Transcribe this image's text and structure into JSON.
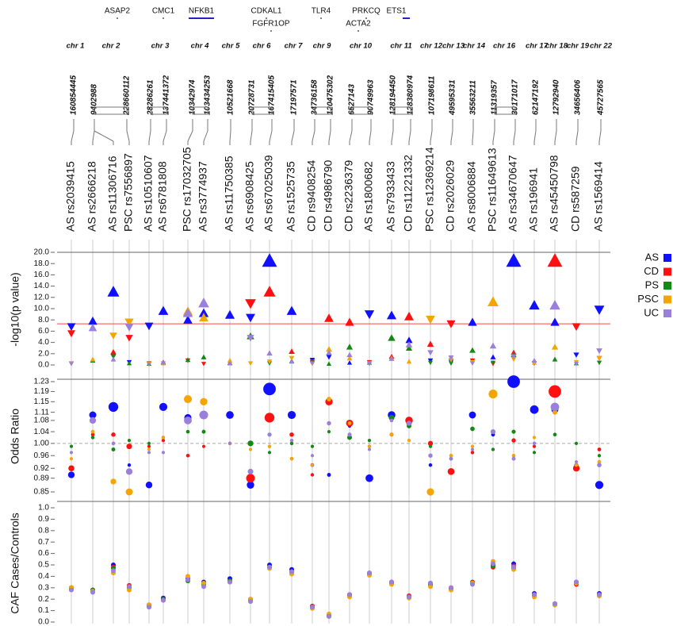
{
  "genes": [
    "ASAP2",
    "CMC1",
    "NFKB1",
    "CDKAL1",
    "FGFR1OP",
    "TLR4",
    "PRKCQ",
    "ACTA2",
    "ETS1"
  ],
  "chromosomes": [
    {
      "name": "chr 1",
      "positions": [
        "160854445"
      ]
    },
    {
      "name": "chr 2",
      "positions": [
        "9402988",
        "228660112"
      ]
    },
    {
      "name": "chr 3",
      "positions": [
        "28286261",
        "137441372"
      ]
    },
    {
      "name": "chr 4",
      "positions": [
        "10342974",
        "103434253"
      ]
    },
    {
      "name": "chr 5",
      "positions": [
        "10521668"
      ]
    },
    {
      "name": "chr 6",
      "positions": [
        "20728731",
        "167415405"
      ]
    },
    {
      "name": "chr 7",
      "positions": [
        "17197571"
      ]
    },
    {
      "name": "chr 9",
      "positions": [
        "34736158",
        "120475302"
      ]
    },
    {
      "name": "chr 10",
      "positions": [
        "6527143",
        "90749963"
      ]
    },
    {
      "name": "chr 11",
      "positions": [
        "128194450",
        "128380974"
      ]
    },
    {
      "name": "chr 12",
      "positions": [
        "107198611"
      ]
    },
    {
      "name": "chr 13",
      "positions": [
        "49595331"
      ]
    },
    {
      "name": "chr 14",
      "positions": [
        "35563211"
      ]
    },
    {
      "name": "chr 16",
      "positions": [
        "11319357",
        "30171017"
      ]
    },
    {
      "name": "chr 17",
      "positions": [
        "62147192"
      ]
    },
    {
      "name": "chr 18",
      "positions": [
        "12792940"
      ]
    },
    {
      "name": "chr 19",
      "positions": [
        "34656406"
      ]
    },
    {
      "name": "chr 22",
      "positions": [
        "45727565"
      ]
    }
  ],
  "chart_data": [
    {
      "type": "scatter",
      "marker": "triangle",
      "ylabel": "-log10(p value)",
      "categories": [
        "AS rs2039415",
        "AS rs2666218",
        "AS rs11306716",
        "PSC rs7556897",
        "AS rs10510607",
        "AS rs6781808",
        "PSC rs17032705",
        "AS rs3774937",
        "AS rs11750385",
        "AS rs6908425",
        "AS rs67025039",
        "AS rs1525735",
        "CD rs9408254",
        "CD rs4986790",
        "CD rs2236379",
        "AS rs1800682",
        "AS rs7933433",
        "CD rs11221332",
        "PSC rs12369214",
        "CD rs2026029",
        "AS rs8006884",
        "PSC rs11649613",
        "AS rs34670647",
        "AS rs196941",
        "AS rs45450798",
        "CD rs587259",
        "AS rs1569414"
      ],
      "ylim": [
        0,
        20
      ],
      "yticks": [
        {
          "value": 0,
          "label": "0.0"
        },
        {
          "value": 2,
          "label": "2.0"
        },
        {
          "value": 4,
          "label": "4.0"
        },
        {
          "value": 6,
          "label": "6.0"
        },
        {
          "value": 8,
          "label": "8.0"
        },
        {
          "value": 10,
          "label": "10.0"
        },
        {
          "value": 12,
          "label": "12.0"
        },
        {
          "value": 14,
          "label": "14.0"
        },
        {
          "value": 16,
          "label": "16.0"
        },
        {
          "value": 18,
          "label": "18.0"
        },
        {
          "value": 20,
          "label": "20.0"
        }
      ],
      "significance_line": 7.3,
      "significance_color": "#ff4444",
      "series": [
        {
          "name": "AS",
          "color": "#1010ff",
          "values": [
            6.8,
            7.8,
            13.0,
            0.5,
            6.9,
            9.6,
            8.0,
            9.2,
            8.9,
            8.4,
            18.5,
            9.6,
            0.9,
            1.4,
            0.4,
            9.0,
            8.8,
            4.4,
            0.8,
            0.6,
            7.6,
            1.4,
            18.5,
            10.6,
            7.6,
            1.8,
            9.8
          ]
        },
        {
          "name": "CD",
          "color": "#ff1010",
          "values": [
            5.6,
            0.8,
            2.3,
            4.8,
            0.3,
            0.5,
            0.8,
            0.2,
            0.4,
            10.9,
            13.0,
            2.4,
            0.6,
            8.3,
            7.6,
            0.5,
            1.5,
            8.6,
            3.7,
            7.3,
            0.8,
            0.2,
            2.2,
            0.3,
            18.5,
            6.8,
            1.2
          ]
        },
        {
          "name": "PS",
          "color": "#108a10",
          "values": [
            0.3,
            0.8,
            1.5,
            0.3,
            0.2,
            0.4,
            0.9,
            1.4,
            0.3,
            5.1,
            0.3,
            0.7,
            0.4,
            0.2,
            3.2,
            0.4,
            4.8,
            3.0,
            0.4,
            0.3,
            2.6,
            0.4,
            1.8,
            0.3,
            1.0,
            0.3,
            0.4
          ]
        },
        {
          "name": "PSC",
          "color": "#f5a500",
          "values": [
            0.3,
            1.0,
            5.2,
            7.6,
            0.2,
            0.3,
            9.5,
            8.4,
            0.8,
            0.3,
            0.6,
            1.2,
            0.2,
            2.8,
            1.2,
            0.3,
            1.2,
            0.6,
            8.1,
            0.9,
            0.5,
            11.2,
            1.0,
            0.4,
            3.2,
            0.5,
            1.2
          ]
        },
        {
          "name": "UC",
          "color": "#9a7fdc",
          "values": [
            0.2,
            6.6,
            1.0,
            6.7,
            0.1,
            0.3,
            9.2,
            11.0,
            0.3,
            4.8,
            2.1,
            0.6,
            0.3,
            2.2,
            1.8,
            0.2,
            1.1,
            3.6,
            2.2,
            1.3,
            0.3,
            3.4,
            1.5,
            0.8,
            10.6,
            0.2,
            2.5
          ]
        }
      ]
    },
    {
      "type": "scatter",
      "marker": "circle",
      "ylabel": "Odds Ratio",
      "log_scale": true,
      "reference_line": 1,
      "ylim": [
        0.85,
        1.23
      ],
      "yticks": [
        0.85,
        0.89,
        0.92,
        0.96,
        {
          "value": 1,
          "label": "1.00"
        },
        1.04,
        1.08,
        1.11,
        1.15,
        1.19,
        1.23
      ],
      "series": [
        {
          "values": [
            0.9,
            1.1,
            1.13,
            0.93,
            0.87,
            1.13,
            1.09,
            1.1,
            1.1,
            0.87,
            1.2,
            1.1,
            0.93,
            0.9,
            1.06,
            0.89,
            1.1,
            1.07,
            0.93,
            0.95,
            1.1,
            1.03,
            1.23,
            1.12,
            1.12,
            0.93,
            0.87
          ]
        },
        {
          "values": [
            0.92,
            1.03,
            1.03,
            0.99,
            0.99,
            1.01,
            0.96,
            0.99,
            1.0,
            0.89,
            1.09,
            1.03,
            0.9,
            1.15,
            1.07,
            0.99,
            1.03,
            1.08,
            1.0,
            0.91,
            0.97,
            0.98,
            1.01,
            0.99,
            1.19,
            0.92,
            0.98
          ]
        },
        {
          "values": [
            0.99,
            1.02,
            0.98,
            1.01,
            1.0,
            1.02,
            1.04,
            1.04,
            1.0,
            1.0,
            0.97,
            1.0,
            0.99,
            1.04,
            1.02,
            1.01,
            1.09,
            1.06,
            0.99,
            0.95,
            1.05,
            0.98,
            1.04,
            0.97,
            1.03,
            1.0,
            0.96
          ]
        },
        {
          "values": [
            0.95,
            1.04,
            0.88,
            0.85,
            0.98,
            1.02,
            1.16,
            1.15,
            1.0,
            0.98,
            0.99,
            0.95,
            0.93,
            1.16,
            1.07,
            0.99,
            1.03,
            1.01,
            0.85,
            0.96,
            0.99,
            1.18,
            0.96,
            1.02,
            1.11,
            0.93,
            0.94
          ]
        },
        {
          "values": [
            0.97,
            1.08,
            1.0,
            0.91,
            0.97,
            0.97,
            1.08,
            1.1,
            1.0,
            0.91,
            1.03,
            1.01,
            0.96,
            1.07,
            1.03,
            0.98,
            1.08,
            1.07,
            0.96,
            0.95,
            0.98,
            1.04,
            0.95,
            1.0,
            1.13,
            0.94,
            0.93
          ]
        }
      ]
    },
    {
      "type": "scatter",
      "marker": "dot",
      "ylabel": "CAF Cases/Controls",
      "ylim": [
        0,
        1
      ],
      "yticks": [
        {
          "value": 0,
          "label": "0.0"
        },
        0.1,
        0.2,
        0.3,
        0.4,
        0.5,
        0.6,
        0.7,
        0.8,
        0.9,
        {
          "value": 1,
          "label": "1.0"
        }
      ],
      "series": [
        {
          "values": [
            0.3,
            0.28,
            0.5,
            0.31,
            0.15,
            0.21,
            0.38,
            0.35,
            0.38,
            0.2,
            0.5,
            0.46,
            0.13,
            0.06,
            0.24,
            0.42,
            0.35,
            0.22,
            0.34,
            0.29,
            0.34,
            0.5,
            0.51,
            0.25,
            0.16,
            0.35,
            0.25
          ]
        },
        {
          "values": [
            0.3,
            0.27,
            0.48,
            0.32,
            0.14,
            0.2,
            0.37,
            0.33,
            0.36,
            0.19,
            0.48,
            0.44,
            0.14,
            0.05,
            0.24,
            0.43,
            0.34,
            0.23,
            0.33,
            0.3,
            0.35,
            0.48,
            0.49,
            0.24,
            0.16,
            0.33,
            0.24
          ]
        },
        {
          "values": [
            0.29,
            0.28,
            0.47,
            0.3,
            0.14,
            0.2,
            0.36,
            0.33,
            0.36,
            0.19,
            0.48,
            0.44,
            0.13,
            0.05,
            0.23,
            0.42,
            0.34,
            0.22,
            0.32,
            0.29,
            0.34,
            0.49,
            0.47,
            0.23,
            0.15,
            0.34,
            0.23
          ]
        },
        {
          "values": [
            0.3,
            0.27,
            0.43,
            0.28,
            0.15,
            0.19,
            0.4,
            0.34,
            0.35,
            0.2,
            0.47,
            0.42,
            0.12,
            0.07,
            0.22,
            0.41,
            0.33,
            0.21,
            0.31,
            0.28,
            0.34,
            0.53,
            0.46,
            0.22,
            0.15,
            0.34,
            0.23
          ]
        },
        {
          "values": [
            0.28,
            0.26,
            0.45,
            0.31,
            0.13,
            0.19,
            0.37,
            0.31,
            0.35,
            0.18,
            0.48,
            0.44,
            0.13,
            0.05,
            0.24,
            0.43,
            0.35,
            0.22,
            0.34,
            0.3,
            0.33,
            0.51,
            0.48,
            0.24,
            0.16,
            0.35,
            0.24
          ]
        }
      ]
    }
  ]
}
